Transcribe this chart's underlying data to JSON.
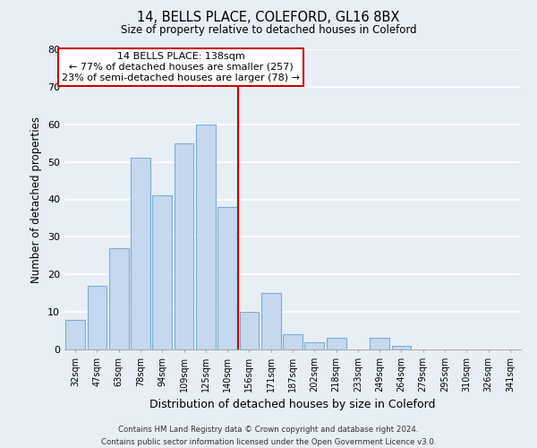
{
  "title": "14, BELLS PLACE, COLEFORD, GL16 8BX",
  "subtitle": "Size of property relative to detached houses in Coleford",
  "xlabel": "Distribution of detached houses by size in Coleford",
  "ylabel": "Number of detached properties",
  "bar_labels": [
    "32sqm",
    "47sqm",
    "63sqm",
    "78sqm",
    "94sqm",
    "109sqm",
    "125sqm",
    "140sqm",
    "156sqm",
    "171sqm",
    "187sqm",
    "202sqm",
    "218sqm",
    "233sqm",
    "249sqm",
    "264sqm",
    "279sqm",
    "295sqm",
    "310sqm",
    "326sqm",
    "341sqm"
  ],
  "bar_values": [
    8,
    17,
    27,
    51,
    41,
    55,
    60,
    38,
    10,
    15,
    4,
    2,
    3,
    0,
    3,
    1,
    0,
    0,
    0,
    0,
    0
  ],
  "bar_color": "#c5d8ee",
  "bar_edge_color": "#7aaed0",
  "vline_x": 7,
  "vline_color": "#cc0000",
  "ylim": [
    0,
    80
  ],
  "yticks": [
    0,
    10,
    20,
    30,
    40,
    50,
    60,
    70,
    80
  ],
  "annotation_title": "14 BELLS PLACE: 138sqm",
  "annotation_line1": "← 77% of detached houses are smaller (257)",
  "annotation_line2": "23% of semi-detached houses are larger (78) →",
  "annotation_box_color": "#ffffff",
  "annotation_box_edge": "#cc0000",
  "footer_line1": "Contains HM Land Registry data © Crown copyright and database right 2024.",
  "footer_line2": "Contains public sector information licensed under the Open Government Licence v3.0.",
  "background_color": "#e8eef5",
  "grid_color": "#ffffff"
}
